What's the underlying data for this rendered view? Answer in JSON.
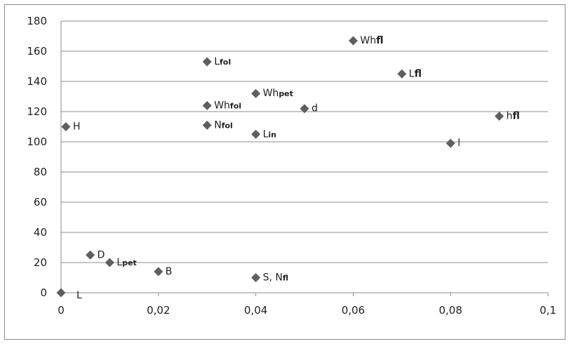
{
  "chart_data": {
    "type": "scatter",
    "title": "",
    "xlabel": "",
    "ylabel": "",
    "xlim": [
      0,
      0.1
    ],
    "ylim": [
      0,
      180
    ],
    "grid": "horizontal",
    "legend": "none",
    "marker_color": "#5f5f5f",
    "grid_color": "#8c8c8c",
    "x_ticks": [
      "0",
      "0,02",
      "0,04",
      "0,06",
      "0,08",
      "0,1"
    ],
    "y_ticks": [
      "0",
      "20",
      "40",
      "60",
      "80",
      "100",
      "120",
      "140",
      "160",
      "180"
    ],
    "points": [
      {
        "x": 0.0,
        "y": 0,
        "label": "L",
        "parts": [
          {
            "t": "L"
          }
        ]
      },
      {
        "x": 0.001,
        "y": 110,
        "label": "H",
        "parts": [
          {
            "t": "H"
          }
        ]
      },
      {
        "x": 0.006,
        "y": 25,
        "label": "D",
        "parts": [
          {
            "t": "D"
          }
        ]
      },
      {
        "x": 0.01,
        "y": 20,
        "label": "Lpet",
        "parts": [
          {
            "t": "L"
          },
          {
            "t": "pet",
            "sub": true
          }
        ]
      },
      {
        "x": 0.02,
        "y": 14,
        "label": "B",
        "parts": [
          {
            "t": "B"
          }
        ]
      },
      {
        "x": 0.03,
        "y": 153,
        "label": "Lfol",
        "parts": [
          {
            "t": "L"
          },
          {
            "t": "fol",
            "sub": true
          }
        ]
      },
      {
        "x": 0.03,
        "y": 124,
        "label": "Whfol",
        "parts": [
          {
            "t": "Wh"
          },
          {
            "t": "fol",
            "sub": true
          }
        ]
      },
      {
        "x": 0.03,
        "y": 111,
        "label": "Nfol",
        "parts": [
          {
            "t": "N"
          },
          {
            "t": "fol",
            "sub": true
          }
        ]
      },
      {
        "x": 0.04,
        "y": 132,
        "label": "Whpet",
        "parts": [
          {
            "t": "Wh"
          },
          {
            "t": "pet",
            "sub": true
          }
        ]
      },
      {
        "x": 0.04,
        "y": 105,
        "label": "Lin",
        "parts": [
          {
            "t": "L"
          },
          {
            "t": "in",
            "sub": true
          }
        ]
      },
      {
        "x": 0.04,
        "y": 10,
        "label": "S, Nfl",
        "parts": [
          {
            "t": "S, N"
          },
          {
            "t": "fl",
            "sub": true
          }
        ]
      },
      {
        "x": 0.05,
        "y": 122,
        "label": "d",
        "parts": [
          {
            "t": "d"
          }
        ]
      },
      {
        "x": 0.06,
        "y": 167,
        "label": "Whfl",
        "parts": [
          {
            "t": "Wh"
          },
          {
            "t": "fl",
            "bold": true
          }
        ]
      },
      {
        "x": 0.07,
        "y": 145,
        "label": "Lfl",
        "parts": [
          {
            "t": "L"
          },
          {
            "t": "fl",
            "bold": true
          }
        ]
      },
      {
        "x": 0.08,
        "y": 99,
        "label": "l",
        "parts": [
          {
            "t": "l"
          }
        ]
      },
      {
        "x": 0.09,
        "y": 117,
        "label": "hfl",
        "parts": [
          {
            "t": "h"
          },
          {
            "t": "fl",
            "bold": true
          }
        ]
      }
    ]
  }
}
